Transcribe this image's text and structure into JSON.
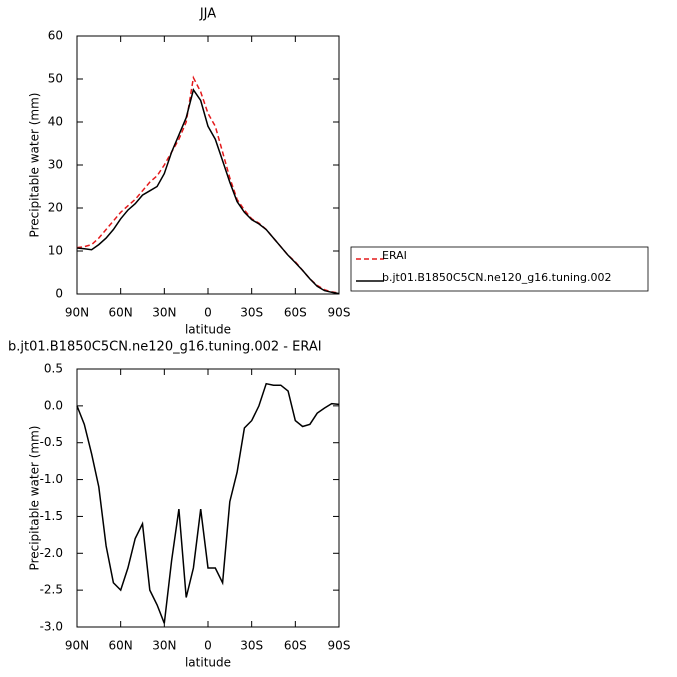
{
  "chart_data": [
    {
      "type": "line",
      "title": "JJA",
      "x_label": "latitude",
      "y_label": "Precipitable water (mm)",
      "x": [
        90,
        85,
        80,
        75,
        70,
        65,
        60,
        55,
        50,
        45,
        40,
        35,
        30,
        25,
        20,
        15,
        10,
        5,
        0,
        -5,
        -10,
        -15,
        -20,
        -25,
        -30,
        -35,
        -40,
        -45,
        -50,
        -55,
        -60,
        -65,
        -70,
        -75,
        -80,
        -85,
        -90
      ],
      "series": [
        {
          "name": "ERAI",
          "color": "#e41a1c",
          "dash": true,
          "values": [
            10.8,
            11,
            11.5,
            13,
            15,
            17,
            19,
            20.5,
            22,
            24,
            26,
            27.5,
            30,
            33,
            36,
            40,
            50.3,
            47,
            42,
            39,
            33,
            27,
            22,
            19.5,
            17.5,
            16.5,
            15,
            13,
            11,
            9,
            7.5,
            5.5,
            3.5,
            2,
            1,
            0.5,
            0.2
          ]
        },
        {
          "name": "b.jt01.B1850C5CN.ne120_g16.tuning.002",
          "color": "#000000",
          "dash": false,
          "values": [
            10.7,
            10.5,
            10.3,
            11.5,
            13,
            15,
            17.5,
            19.5,
            21,
            23,
            24,
            25,
            28,
            33,
            37,
            41,
            47.5,
            45,
            39,
            36,
            31,
            26,
            21.5,
            19,
            17.3,
            16.3,
            15,
            13,
            11,
            9,
            7.3,
            5.5,
            3.5,
            1.8,
            0.8,
            0.4,
            0.1
          ]
        }
      ],
      "xlim": [
        90,
        -90
      ],
      "xticks": [
        {
          "value": 90,
          "label": "90N"
        },
        {
          "value": 60,
          "label": "60N"
        },
        {
          "value": 30,
          "label": "30N"
        },
        0,
        {
          "value": -30,
          "label": "30S"
        },
        {
          "value": -60,
          "label": "60S"
        },
        {
          "value": -90,
          "label": "90S"
        }
      ],
      "ylim": [
        0,
        60
      ],
      "yticks": [
        0,
        10,
        20,
        30,
        40,
        50,
        60
      ],
      "legend": "right"
    },
    {
      "type": "line",
      "title": "b.jt01.B1850C5CN.ne120_g16.tuning.002 - ERAI",
      "x_label": "latitude",
      "y_label": "Precipitable water (mm)",
      "x": [
        90,
        85,
        80,
        75,
        70,
        65,
        60,
        55,
        50,
        45,
        40,
        35,
        30,
        25,
        20,
        15,
        10,
        5,
        0,
        -5,
        -10,
        -15,
        -20,
        -25,
        -30,
        -35,
        -40,
        -45,
        -50,
        -55,
        -60,
        -65,
        -70,
        -75,
        -80,
        -85,
        -90
      ],
      "series": [
        {
          "color": "#000000",
          "dash": false,
          "values": [
            0,
            -0.25,
            -0.65,
            -1.1,
            -1.9,
            -2.4,
            -2.5,
            -2.2,
            -1.8,
            -1.6,
            -2.5,
            -2.7,
            -2.95,
            -2.1,
            -1.4,
            -2.6,
            -2.2,
            -1.4,
            -2.2,
            -2.2,
            -2.4,
            -1.3,
            -0.9,
            -0.3,
            -0.2,
            0,
            0.3,
            0.28,
            0.28,
            0.2,
            -0.2,
            -0.28,
            -0.25,
            -0.1,
            -0.03,
            0.03,
            0.02
          ]
        }
      ],
      "xlim": [
        90,
        -90
      ],
      "xticks": [
        {
          "value": 90,
          "label": "90N"
        },
        {
          "value": 60,
          "label": "60N"
        },
        {
          "value": 30,
          "label": "30N"
        },
        0,
        {
          "value": -30,
          "label": "30S"
        },
        {
          "value": -60,
          "label": "60S"
        },
        {
          "value": -90,
          "label": "90S"
        }
      ],
      "ylim": [
        -3,
        0.5
      ],
      "yticks": [
        0.5,
        {
          "value": 0,
          "label": "0.0"
        },
        -0.5,
        {
          "value": -1,
          "label": "-1.0"
        },
        -1.5,
        {
          "value": -2,
          "label": "-2.0"
        },
        -2.5,
        {
          "value": -3,
          "label": "-3.0"
        }
      ]
    }
  ]
}
